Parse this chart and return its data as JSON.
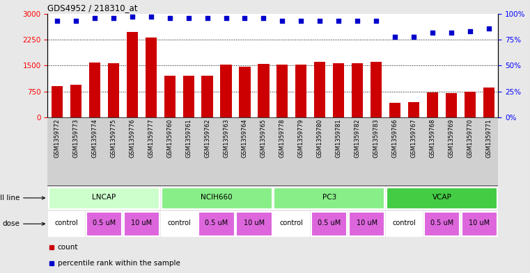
{
  "title": "GDS4952 / 218310_at",
  "samples": [
    "GSM1359772",
    "GSM1359773",
    "GSM1359774",
    "GSM1359775",
    "GSM1359776",
    "GSM1359777",
    "GSM1359760",
    "GSM1359761",
    "GSM1359762",
    "GSM1359763",
    "GSM1359764",
    "GSM1359765",
    "GSM1359778",
    "GSM1359779",
    "GSM1359780",
    "GSM1359781",
    "GSM1359782",
    "GSM1359783",
    "GSM1359766",
    "GSM1359767",
    "GSM1359768",
    "GSM1359769",
    "GSM1359770",
    "GSM1359771"
  ],
  "counts": [
    900,
    950,
    1580,
    1560,
    2480,
    2300,
    1200,
    1210,
    1210,
    1520,
    1460,
    1550,
    1530,
    1530,
    1600,
    1560,
    1570,
    1600,
    420,
    450,
    720,
    700,
    750,
    870
  ],
  "percentiles": [
    93,
    93,
    96,
    96,
    97,
    97,
    96,
    96,
    96,
    96,
    96,
    96,
    93,
    93,
    93,
    93,
    93,
    93,
    78,
    78,
    82,
    82,
    83,
    86
  ],
  "bar_color": "#cc0000",
  "dot_color": "#0000cc",
  "left_ylim": [
    0,
    3000
  ],
  "right_ylim": [
    0,
    100
  ],
  "left_yticks": [
    0,
    750,
    1500,
    2250,
    3000
  ],
  "right_yticks": [
    0,
    25,
    50,
    75,
    100
  ],
  "cell_line_names": [
    "LNCAP",
    "NCIH660",
    "PC3",
    "VCAP"
  ],
  "cell_line_colors": [
    "#ccffcc",
    "#88ee88",
    "#88ee88",
    "#44cc44"
  ],
  "cell_line_boundaries": [
    [
      0,
      6
    ],
    [
      6,
      12
    ],
    [
      12,
      18
    ],
    [
      18,
      24
    ]
  ],
  "dose_labels": [
    "control",
    "0.5 uM",
    "10 uM"
  ],
  "dose_colors": [
    "#ffffff",
    "#dd66dd",
    "#dd66dd"
  ],
  "bg_color": "#e8e8e8",
  "plot_bg_color": "#ffffff",
  "xtick_bg": "#d0d0d0"
}
